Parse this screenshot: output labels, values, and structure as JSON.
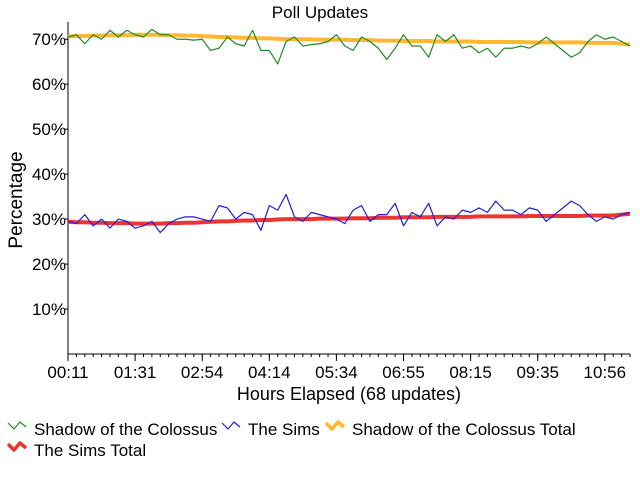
{
  "chart_data": {
    "type": "line",
    "title": "Poll Updates",
    "xlabel": "Hours Elapsed (68 updates)",
    "ylabel": "Percentage",
    "ylim": [
      0,
      72.5
    ],
    "y_ticks": [
      "10%",
      "20%",
      "30%",
      "40%",
      "50%",
      "60%",
      "70%"
    ],
    "y_tick_values": [
      10,
      20,
      30,
      40,
      50,
      60,
      70
    ],
    "x_ticks": [
      "00:11",
      "01:31",
      "02:54",
      "04:14",
      "05:34",
      "06:55",
      "08:15",
      "09:35",
      "10:56"
    ],
    "x_tick_positions": [
      0,
      8,
      16,
      24,
      32,
      40,
      48,
      56,
      64
    ],
    "x_count": 68,
    "grid": false,
    "legend_position": "bottom",
    "series": [
      {
        "name": "Shadow of the Colossus",
        "color": "#228b22",
        "marker": "line-icon",
        "values": [
          70.5,
          71.0,
          69.0,
          71.0,
          70.0,
          72.0,
          70.5,
          72.0,
          71.0,
          70.5,
          72.2,
          71.0,
          71.0,
          70.0,
          70.0,
          69.8,
          70.0,
          67.5,
          68.0,
          70.5,
          69.0,
          68.5,
          72.0,
          67.5,
          67.5,
          64.5,
          69.5,
          70.5,
          68.5,
          68.8,
          69.0,
          69.5,
          71.0,
          68.5,
          67.5,
          70.5,
          69.5,
          68.0,
          65.5,
          68.0,
          71.0,
          68.5,
          68.5,
          66.0,
          71.0,
          69.5,
          71.0,
          68.0,
          68.5,
          67.0,
          68.0,
          66.0,
          68.0,
          68.0,
          68.5,
          68.0,
          69.0,
          70.5,
          69.0,
          67.5,
          66.0,
          67.0,
          69.5,
          71.0,
          70.0,
          70.5,
          69.5,
          68.5
        ]
      },
      {
        "name": "The Sims",
        "color": "#2020dd",
        "marker": "line-icon",
        "values": [
          29.5,
          29.0,
          31.0,
          28.5,
          30.0,
          28.0,
          30.0,
          29.5,
          28.0,
          28.5,
          29.5,
          27.0,
          29.0,
          30.0,
          30.5,
          30.5,
          30.0,
          29.5,
          33.0,
          32.5,
          30.0,
          31.5,
          31.0,
          27.5,
          33.0,
          32.0,
          35.5,
          30.5,
          29.5,
          31.5,
          31.0,
          30.5,
          30.0,
          29.0,
          32.0,
          33.0,
          29.5,
          31.0,
          31.0,
          33.5,
          28.5,
          31.5,
          30.5,
          33.5,
          28.5,
          30.5,
          30.0,
          32.0,
          31.5,
          32.5,
          31.5,
          34.0,
          32.0,
          32.0,
          31.0,
          32.5,
          32.0,
          29.5,
          31.0,
          32.5,
          34.0,
          33.0,
          31.0,
          29.5,
          30.5,
          30.0,
          31.0,
          31.5
        ]
      },
      {
        "name": "Shadow of the Colossus Total",
        "color": "#ffb830",
        "marker": "thick-line-icon",
        "values": [
          70.6,
          70.7,
          70.7,
          70.8,
          70.8,
          70.9,
          70.9,
          70.9,
          71.0,
          71.0,
          71.0,
          71.0,
          70.9,
          70.9,
          70.8,
          70.8,
          70.7,
          70.6,
          70.5,
          70.5,
          70.4,
          70.3,
          70.3,
          70.2,
          70.2,
          70.1,
          70.0,
          70.0,
          70.0,
          70.0,
          69.9,
          69.9,
          69.9,
          69.9,
          69.8,
          69.8,
          69.8,
          69.7,
          69.7,
          69.7,
          69.6,
          69.6,
          69.6,
          69.6,
          69.5,
          69.5,
          69.5,
          69.5,
          69.5,
          69.4,
          69.4,
          69.4,
          69.4,
          69.4,
          69.4,
          69.3,
          69.3,
          69.3,
          69.3,
          69.3,
          69.3,
          69.3,
          69.2,
          69.2,
          69.2,
          69.2,
          69.0,
          68.8
        ]
      },
      {
        "name": "The Sims Total",
        "color": "#ee3333",
        "marker": "thick-line-icon",
        "values": [
          29.4,
          29.3,
          29.3,
          29.2,
          29.2,
          29.1,
          29.1,
          29.1,
          29.0,
          29.0,
          29.0,
          29.0,
          29.1,
          29.1,
          29.2,
          29.2,
          29.3,
          29.4,
          29.5,
          29.5,
          29.6,
          29.7,
          29.7,
          29.8,
          29.8,
          29.9,
          30.0,
          30.0,
          30.0,
          30.0,
          30.1,
          30.1,
          30.1,
          30.1,
          30.2,
          30.2,
          30.2,
          30.3,
          30.3,
          30.3,
          30.4,
          30.4,
          30.4,
          30.4,
          30.5,
          30.5,
          30.5,
          30.5,
          30.5,
          30.6,
          30.6,
          30.6,
          30.6,
          30.6,
          30.6,
          30.7,
          30.7,
          30.7,
          30.7,
          30.7,
          30.7,
          30.7,
          30.8,
          30.8,
          30.8,
          30.8,
          31.0,
          31.2
        ]
      }
    ]
  }
}
